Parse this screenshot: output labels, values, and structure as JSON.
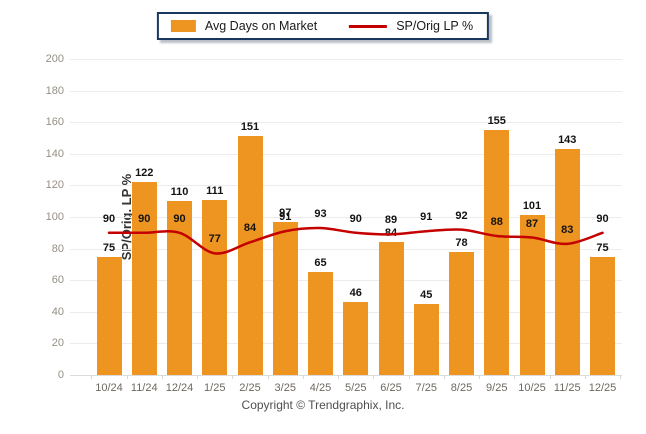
{
  "legend": {
    "bar_label": "Avg Days on Market",
    "line_label": "SP/Orig LP %"
  },
  "y_axis": {
    "title": "SP/Orig. LP %",
    "ticks": [
      0,
      20,
      40,
      60,
      80,
      100,
      120,
      140,
      160,
      180,
      200
    ]
  },
  "footer": {
    "copyright": "Copyright © Trendgraphix, Inc."
  },
  "colors": {
    "bar": "#EE9421",
    "line": "#C40000",
    "grid": "#ececec",
    "y_tick_text": "#958F86",
    "x_tick_text": "#6E6960",
    "value_label": "#141414",
    "legend_border": "#17375E"
  },
  "chart_data": {
    "type": "bar+line combo",
    "title": "",
    "ylabel": "SP/Orig. LP %",
    "xlabel": "",
    "ylim": [
      0,
      200
    ],
    "ytick_step": 20,
    "grid": true,
    "legend_position": "top-center",
    "categories": [
      "10/24",
      "11/24",
      "12/24",
      "1/25",
      "2/25",
      "3/25",
      "4/25",
      "5/25",
      "6/25",
      "7/25",
      "8/25",
      "9/25",
      "10/25",
      "11/25",
      "12/25"
    ],
    "series": [
      {
        "name": "Avg Days on Market",
        "type": "bar",
        "color": "#EE9421",
        "values": [
          75,
          122,
          110,
          111,
          151,
          97,
          65,
          46,
          84,
          45,
          78,
          155,
          101,
          143,
          75
        ]
      },
      {
        "name": "SP/Orig LP %",
        "type": "line",
        "color": "#C40000",
        "values": [
          90,
          90,
          90,
          77,
          84,
          91,
          93,
          90,
          89,
          91,
          92,
          88,
          87,
          83,
          90
        ]
      }
    ]
  }
}
